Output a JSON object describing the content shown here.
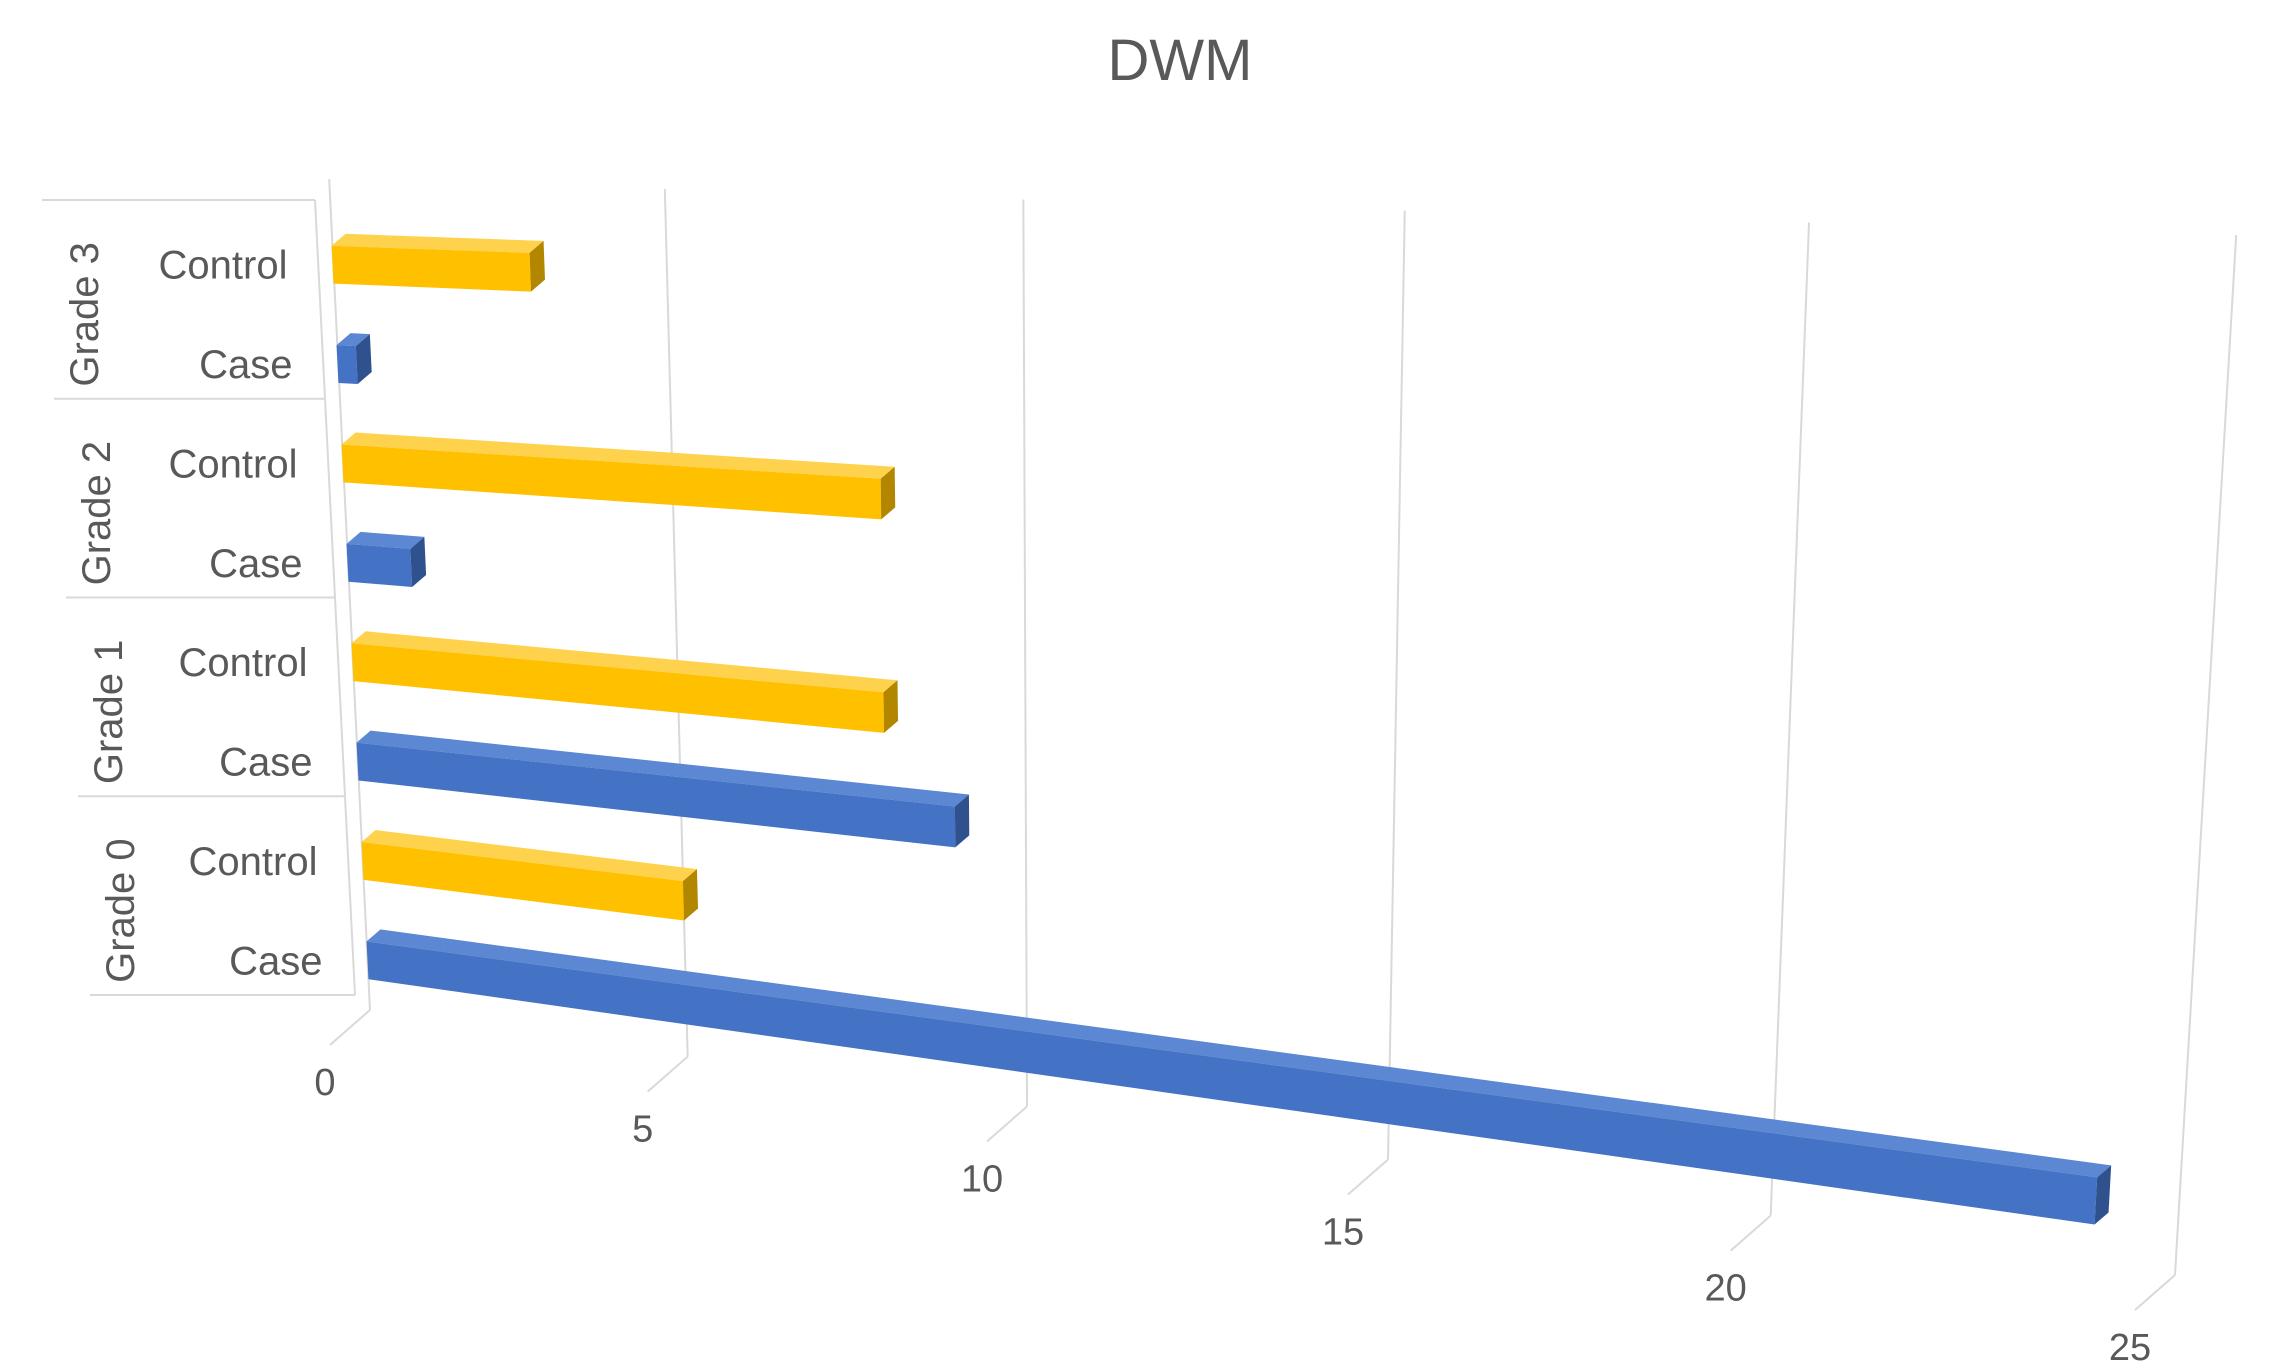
{
  "chart_data": {
    "type": "bar",
    "orientation": "horizontal",
    "title": "DWM",
    "groups": [
      "Grade 3",
      "Grade 2",
      "Grade 1",
      "Grade 0"
    ],
    "categories": [
      {
        "group": "Grade 3",
        "label": "Control",
        "series": "Control",
        "value": 3.0
      },
      {
        "group": "Grade 3",
        "label": "Case",
        "series": "Case",
        "value": 0.3
      },
      {
        "group": "Grade 2",
        "label": "Control",
        "series": "Control",
        "value": 8.0
      },
      {
        "group": "Grade 2",
        "label": "Case",
        "series": "Case",
        "value": 1.0
      },
      {
        "group": "Grade 1",
        "label": "Control",
        "series": "Control",
        "value": 8.0
      },
      {
        "group": "Grade 1",
        "label": "Case",
        "series": "Case",
        "value": 9.0
      },
      {
        "group": "Grade 0",
        "label": "Control",
        "series": "Control",
        "value": 5.0
      },
      {
        "group": "Grade 0",
        "label": "Case",
        "series": "Case",
        "value": 24.0
      }
    ],
    "x_ticks": [
      0,
      5,
      10,
      15,
      20,
      25
    ],
    "xlim": [
      0,
      25
    ],
    "grid": true,
    "legend": "none",
    "colors": {
      "Case": {
        "front": "#4472C4",
        "top": "#5B87D3",
        "side": "#2F528F"
      },
      "Control": {
        "front": "#FFC000",
        "top": "#FFD24D",
        "side": "#B38600"
      }
    }
  }
}
